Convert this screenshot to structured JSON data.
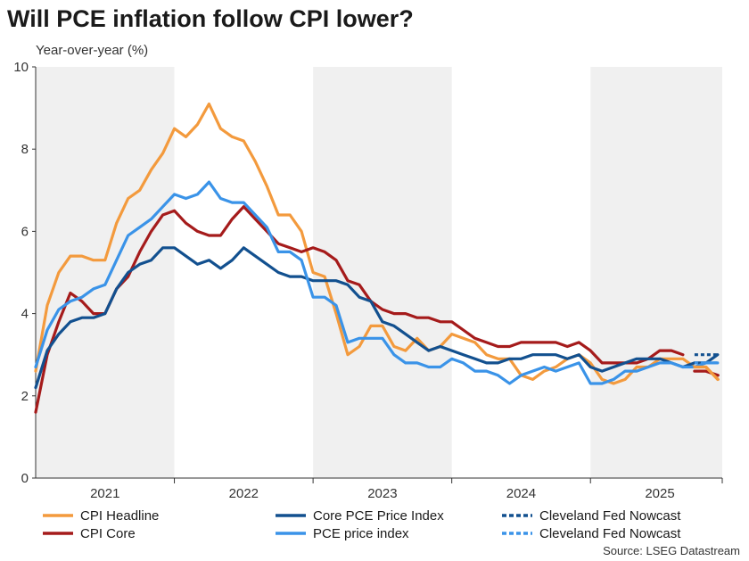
{
  "chart_data": {
    "type": "line",
    "title": "Will PCE inflation follow CPI lower?",
    "subtitle": "Year-over-year (%)",
    "source": "Source: LSEG Datastream",
    "ylim": [
      0,
      10
    ],
    "yticks": [
      "0",
      "2",
      "4",
      "6",
      "8",
      "10"
    ],
    "xlim": [
      2021.0,
      2025.95
    ],
    "xticks": [
      {
        "label": "2021",
        "value": 2021.5
      },
      {
        "label": "2022",
        "value": 2022.5
      },
      {
        "label": "2023",
        "value": 2023.5
      },
      {
        "label": "2024",
        "value": 2024.5
      },
      {
        "label": "2025",
        "value": 2025.5
      }
    ],
    "shaded_years": [
      2021,
      2023,
      2025
    ],
    "start": 2021.0,
    "step": 0.0833333,
    "series": [
      {
        "name": "CPI Headline",
        "color": "#F39A3D",
        "dashed": false,
        "values": [
          2.6,
          4.2,
          5.0,
          5.4,
          5.4,
          5.3,
          5.3,
          6.2,
          6.8,
          7.0,
          7.5,
          7.9,
          8.5,
          8.3,
          8.6,
          9.1,
          8.5,
          8.3,
          8.2,
          7.7,
          7.1,
          6.4,
          6.4,
          6.0,
          5.0,
          4.9,
          4.0,
          3.0,
          3.2,
          3.7,
          3.7,
          3.2,
          3.1,
          3.4,
          3.1,
          3.2,
          3.5,
          3.4,
          3.3,
          3.0,
          2.9,
          2.9,
          2.5,
          2.4,
          2.6,
          2.7,
          2.9,
          3.0,
          2.8,
          2.4,
          2.3,
          2.4,
          2.7,
          2.7,
          2.9,
          2.9,
          2.9,
          2.7,
          2.7,
          2.4
        ]
      },
      {
        "name": "CPI Core",
        "color": "#A51B1B",
        "dashed": false,
        "values": [
          1.6,
          3.0,
          3.8,
          4.5,
          4.3,
          4.0,
          4.0,
          4.6,
          4.9,
          5.5,
          6.0,
          6.4,
          6.5,
          6.2,
          6.0,
          5.9,
          5.9,
          6.3,
          6.6,
          6.3,
          6.0,
          5.7,
          5.6,
          5.5,
          5.6,
          5.5,
          5.3,
          4.8,
          4.7,
          4.3,
          4.1,
          4.0,
          4.0,
          3.9,
          3.9,
          3.8,
          3.8,
          3.6,
          3.4,
          3.3,
          3.2,
          3.2,
          3.3,
          3.3,
          3.3,
          3.3,
          3.2,
          3.3,
          3.1,
          2.8,
          2.8,
          2.8,
          2.8,
          2.9,
          3.1,
          3.1,
          3.0
        ]
      },
      {
        "name": "Core PCE Price Index",
        "color": "#12508F",
        "dashed": false,
        "values": [
          2.2,
          3.1,
          3.5,
          3.8,
          3.9,
          3.9,
          4.0,
          4.6,
          5.0,
          5.2,
          5.3,
          5.6,
          5.6,
          5.4,
          5.2,
          5.3,
          5.1,
          5.3,
          5.6,
          5.4,
          5.2,
          5.0,
          4.9,
          4.9,
          4.8,
          4.8,
          4.8,
          4.7,
          4.4,
          4.3,
          3.8,
          3.7,
          3.5,
          3.3,
          3.1,
          3.2,
          3.1,
          3.0,
          2.9,
          2.8,
          2.8,
          2.9,
          2.9,
          3.0,
          3.0,
          3.0,
          2.9,
          3.0,
          2.7,
          2.6,
          2.7,
          2.8,
          2.9,
          2.9,
          2.9,
          2.8,
          2.7,
          2.8,
          2.8,
          3.0
        ]
      },
      {
        "name": "PCE price index",
        "color": "#3A93E8",
        "dashed": false,
        "values": [
          2.7,
          3.6,
          4.1,
          4.3,
          4.4,
          4.6,
          4.7,
          5.3,
          5.9,
          6.1,
          6.3,
          6.6,
          6.9,
          6.8,
          6.9,
          7.2,
          6.8,
          6.7,
          6.7,
          6.4,
          6.1,
          5.5,
          5.5,
          5.3,
          4.4,
          4.4,
          4.2,
          3.3,
          3.4,
          3.4,
          3.4,
          3.0,
          2.8,
          2.8,
          2.7,
          2.7,
          2.9,
          2.8,
          2.6,
          2.6,
          2.5,
          2.3,
          2.5,
          2.6,
          2.7,
          2.6,
          2.7,
          2.8,
          2.3,
          2.3,
          2.4,
          2.6,
          2.6,
          2.7,
          2.8,
          2.8,
          2.7,
          2.7,
          2.8,
          2.8
        ]
      },
      {
        "name": "Cleveland Fed Nowcast",
        "color": "#12508F",
        "dashed": true,
        "points": [
          [
            2025.75,
            3.0
          ],
          [
            2025.92,
            3.0
          ]
        ]
      },
      {
        "name": "Cleveland Fed Nowcast",
        "color": "#3A93E8",
        "dashed": true,
        "points": [
          [
            2025.75,
            2.8
          ],
          [
            2025.92,
            2.8
          ]
        ]
      },
      {
        "name": "CPI Core (recent)",
        "color": "#A51B1B",
        "dashed": false,
        "in_legend": false,
        "points": [
          [
            2025.75,
            2.6
          ],
          [
            2025.83,
            2.6
          ],
          [
            2025.92,
            2.5
          ]
        ]
      },
      {
        "name": "CPI Headline (recent)",
        "color": "#F39A3D",
        "dashed": false,
        "in_legend": false,
        "points": [
          [
            2025.75,
            2.7
          ],
          [
            2025.83,
            2.7
          ],
          [
            2025.92,
            2.4
          ]
        ]
      }
    ],
    "legend": [
      {
        "label": "CPI Headline",
        "color": "#F39A3D",
        "dashed": false
      },
      {
        "label": "CPI Core",
        "color": "#A51B1B",
        "dashed": false
      },
      {
        "label": "Core PCE Price Index",
        "color": "#12508F",
        "dashed": false
      },
      {
        "label": "PCE price index",
        "color": "#3A93E8",
        "dashed": false
      },
      {
        "label": "Cleveland Fed Nowcast",
        "color": "#12508F",
        "dashed": true
      },
      {
        "label": "Cleveland Fed Nowcast",
        "color": "#3A93E8",
        "dashed": true
      }
    ]
  }
}
